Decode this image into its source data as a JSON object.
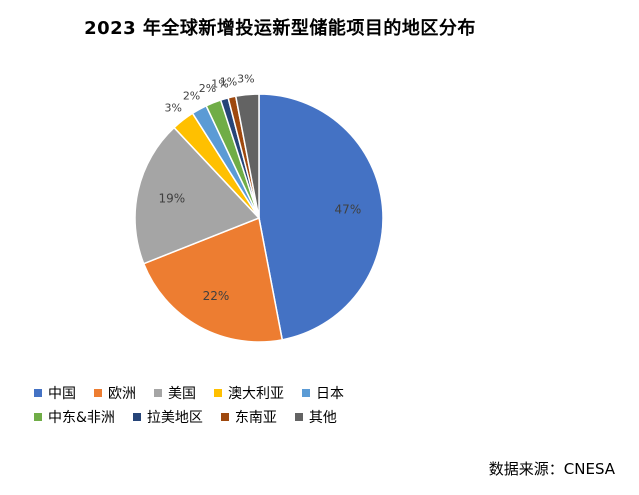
{
  "chart_data": {
    "type": "pie",
    "title": "2023 年全球新增投运新型储能项目的地区分布",
    "slices": [
      {
        "label": "中国",
        "value": 47,
        "display": "47%",
        "color": "#4472c4"
      },
      {
        "label": "欧洲",
        "value": 22,
        "display": "22%",
        "color": "#ed7d31"
      },
      {
        "label": "美国",
        "value": 19,
        "display": "19%",
        "color": "#a5a5a5"
      },
      {
        "label": "澳大利亚",
        "value": 3,
        "display": "3%",
        "color": "#ffc000"
      },
      {
        "label": "日本",
        "value": 2,
        "display": "2%",
        "color": "#5b9bd5"
      },
      {
        "label": "中东&非洲",
        "value": 2,
        "display": "2%",
        "color": "#70ad47"
      },
      {
        "label": "拉美地区",
        "value": 1,
        "display": "1%",
        "color": "#264478"
      },
      {
        "label": "东南亚",
        "value": 1,
        "display": "1%",
        "color": "#9e480e"
      },
      {
        "label": "其他",
        "value": 3,
        "display": "3%",
        "color": "#636363"
      }
    ],
    "legend_position": "bottom-left",
    "source": "数据来源：CNESA"
  }
}
